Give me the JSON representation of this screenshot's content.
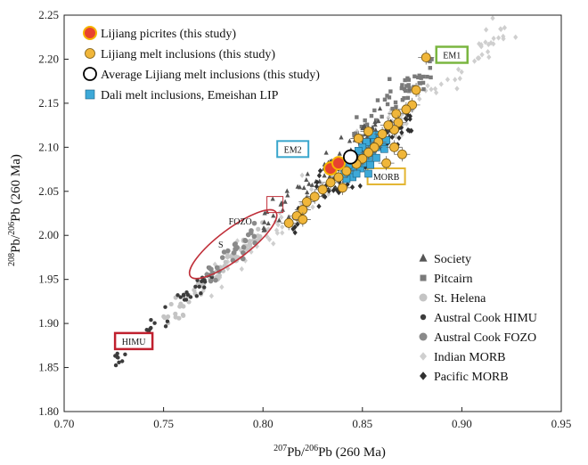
{
  "chart_data": {
    "type": "scatter",
    "xlabel": {
      "sup1": "207",
      "mid": "Pb/",
      "sup2": "206",
      "tail": "Pb (260 Ma)"
    },
    "ylabel": {
      "sup1": "208",
      "mid": "Pb/",
      "sup2": "206",
      "tail": "Pb (260 Ma)"
    },
    "xlim": [
      0.7,
      0.95
    ],
    "ylim": [
      1.8,
      2.25
    ],
    "xticks": [
      "0.70",
      "0.75",
      "0.80",
      "0.85",
      "0.90",
      "0.95"
    ],
    "yticks": [
      "1.80",
      "1.85",
      "1.90",
      "1.95",
      "2.00",
      "2.05",
      "2.10",
      "2.15",
      "2.20",
      "2.25"
    ],
    "legend_top": [
      {
        "key": "lijiang_picrites",
        "label": "Lijiang picrites (this study)"
      },
      {
        "key": "lijiang_mi",
        "label": "Lijiang melt inclusions (this study)"
      },
      {
        "key": "avg_mi",
        "label": "Average Lijiang melt inclusions (this study)"
      },
      {
        "key": "dali_mi",
        "label": "Dali melt inclusions, Emeishan LIP"
      }
    ],
    "legend_bottom": [
      {
        "key": "society",
        "label": "Society"
      },
      {
        "key": "pitcairn",
        "label": "Pitcairn"
      },
      {
        "key": "st_helena",
        "label": "St. Helena"
      },
      {
        "key": "austral_himu",
        "label": "Austral Cook HIMU"
      },
      {
        "key": "austral_fozo",
        "label": "Austral Cook FOZO"
      },
      {
        "key": "indian_morb",
        "label": "Indian MORB"
      },
      {
        "key": "pacific_morb",
        "label": "Pacific MORB"
      }
    ],
    "colors": {
      "picrite_fill": "#e8432e",
      "picrite_edge": "#f5b400",
      "mi_fill": "#f0b63a",
      "mi_edge": "#7a5a10",
      "dali_fill": "#3da9d8",
      "dali_edge": "#1c5f80",
      "society": "#555555",
      "pitcairn": "#7a7a7a",
      "st_helena": "#c4c4c4",
      "austral_himu": "#3c3c3c",
      "austral_fozo": "#8a8a8a",
      "indian_morb": "#cfcfcf",
      "pacific_morb": "#303030",
      "himu_box": "#c0202e",
      "em1_box": "#7ab640",
      "em2_box": "#3aa6cc",
      "morb_box": "#e3b531",
      "fozo_ellipse": "#c0303a"
    },
    "end_members": [
      {
        "key": "himu",
        "label": "HIMU",
        "x": 0.735,
        "y": 1.88
      },
      {
        "key": "em1",
        "label": "EM1",
        "x": 0.895,
        "y": 2.205
      },
      {
        "key": "em2",
        "label": "EM2",
        "x": 0.815,
        "y": 2.098
      },
      {
        "key": "morb",
        "label": "MORB",
        "x": 0.862,
        "y": 2.067
      }
    ],
    "fozo": {
      "label": "FOZO",
      "s_label": "S",
      "cx": 0.785,
      "cy": 1.99,
      "box_x": 0.806,
      "box_y": 2.035
    },
    "lijiang_picrites": [
      {
        "x": 0.834,
        "y": 2.076
      },
      {
        "x": 0.838,
        "y": 2.082
      }
    ],
    "avg_mi": {
      "x": 0.844,
      "y": 2.089
    },
    "lijiang_mi": [
      {
        "x": 0.882,
        "y": 2.202
      },
      {
        "x": 0.877,
        "y": 2.165
      },
      {
        "x": 0.875,
        "y": 2.148
      },
      {
        "x": 0.867,
        "y": 2.138
      },
      {
        "x": 0.872,
        "y": 2.143
      },
      {
        "x": 0.868,
        "y": 2.128
      },
      {
        "x": 0.866,
        "y": 2.12
      },
      {
        "x": 0.863,
        "y": 2.125
      },
      {
        "x": 0.86,
        "y": 2.115
      },
      {
        "x": 0.858,
        "y": 2.106
      },
      {
        "x": 0.856,
        "y": 2.1
      },
      {
        "x": 0.853,
        "y": 2.094
      },
      {
        "x": 0.85,
        "y": 2.087
      },
      {
        "x": 0.847,
        "y": 2.081
      },
      {
        "x": 0.842,
        "y": 2.073
      },
      {
        "x": 0.838,
        "y": 2.066
      },
      {
        "x": 0.834,
        "y": 2.06
      },
      {
        "x": 0.83,
        "y": 2.052
      },
      {
        "x": 0.826,
        "y": 2.044
      },
      {
        "x": 0.822,
        "y": 2.038
      },
      {
        "x": 0.82,
        "y": 2.029
      },
      {
        "x": 0.817,
        "y": 2.022
      },
      {
        "x": 0.813,
        "y": 2.014
      },
      {
        "x": 0.82,
        "y": 2.018
      },
      {
        "x": 0.848,
        "y": 2.11
      },
      {
        "x": 0.853,
        "y": 2.118
      },
      {
        "x": 0.866,
        "y": 2.1
      },
      {
        "x": 0.862,
        "y": 2.082
      },
      {
        "x": 0.87,
        "y": 2.092
      },
      {
        "x": 0.84,
        "y": 2.054
      }
    ],
    "dali_mi": [
      {
        "x": 0.844,
        "y": 2.072
      },
      {
        "x": 0.846,
        "y": 2.078
      },
      {
        "x": 0.848,
        "y": 2.084
      },
      {
        "x": 0.85,
        "y": 2.09
      },
      {
        "x": 0.852,
        "y": 2.096
      },
      {
        "x": 0.854,
        "y": 2.102
      },
      {
        "x": 0.856,
        "y": 2.108
      },
      {
        "x": 0.858,
        "y": 2.114
      },
      {
        "x": 0.86,
        "y": 2.104
      },
      {
        "x": 0.849,
        "y": 2.076
      },
      {
        "x": 0.851,
        "y": 2.082
      },
      {
        "x": 0.853,
        "y": 2.088
      },
      {
        "x": 0.855,
        "y": 2.094
      },
      {
        "x": 0.857,
        "y": 2.1
      },
      {
        "x": 0.845,
        "y": 2.066
      },
      {
        "x": 0.847,
        "y": 2.07
      },
      {
        "x": 0.842,
        "y": 2.064
      },
      {
        "x": 0.859,
        "y": 2.11
      },
      {
        "x": 0.861,
        "y": 2.098
      },
      {
        "x": 0.852,
        "y": 2.106
      },
      {
        "x": 0.846,
        "y": 2.092
      },
      {
        "x": 0.854,
        "y": 2.08
      },
      {
        "x": 0.85,
        "y": 2.1
      },
      {
        "x": 0.848,
        "y": 2.096
      },
      {
        "x": 0.857,
        "y": 2.088
      },
      {
        "x": 0.843,
        "y": 2.08
      },
      {
        "x": 0.862,
        "y": 2.108
      },
      {
        "x": 0.855,
        "y": 2.114
      },
      {
        "x": 0.841,
        "y": 2.07
      },
      {
        "x": 0.853,
        "y": 2.07
      }
    ]
  }
}
